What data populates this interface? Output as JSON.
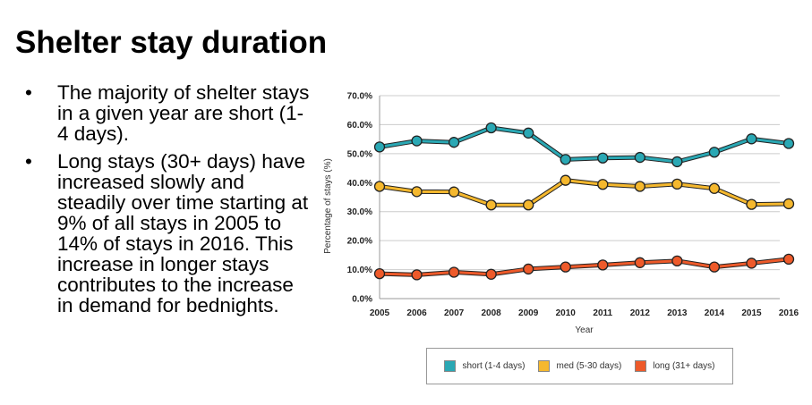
{
  "slide": {
    "title": "Shelter stay duration",
    "bullets": [
      "The majority of shelter stays in a given year are short (1-4 days).",
      "Long stays (30+ days) have increased slowly and steadily over time starting at 9% of all stays in 2005 to 14% of stays in 2016. This increase in longer stays contributes to the increase in demand for bednights."
    ]
  },
  "chart_data": {
    "type": "line",
    "title": "",
    "xlabel": "Year",
    "ylabel": "Percentage of stays (%)",
    "ylim": [
      0,
      70
    ],
    "yticks": [
      "0.0%",
      "10.0%",
      "20.0%",
      "30.0%",
      "40.0%",
      "50.0%",
      "60.0%",
      "70.0%"
    ],
    "grid": true,
    "legend_position": "bottom",
    "x": [
      "2005",
      "2006",
      "2007",
      "2008",
      "2009",
      "2010",
      "2011",
      "2012",
      "2013",
      "2014",
      "2015",
      "2016"
    ],
    "series": [
      {
        "name": "short (1-4 days)",
        "color": "#2aa8b4",
        "values": [
          52.3,
          54.4,
          53.9,
          58.9,
          57.1,
          48.0,
          48.5,
          48.7,
          47.2,
          50.5,
          55.1,
          53.5
        ]
      },
      {
        "name": "med (5-30 days)",
        "color": "#f5b82e",
        "values": [
          38.7,
          36.9,
          36.8,
          32.3,
          32.3,
          40.8,
          39.4,
          38.7,
          39.5,
          38.0,
          32.5,
          32.7
        ]
      },
      {
        "name": "long (31+ days)",
        "color": "#ee5a2a",
        "values": [
          8.6,
          8.2,
          9.1,
          8.4,
          10.2,
          10.9,
          11.6,
          12.4,
          13.0,
          10.9,
          12.2,
          13.6
        ]
      }
    ]
  }
}
